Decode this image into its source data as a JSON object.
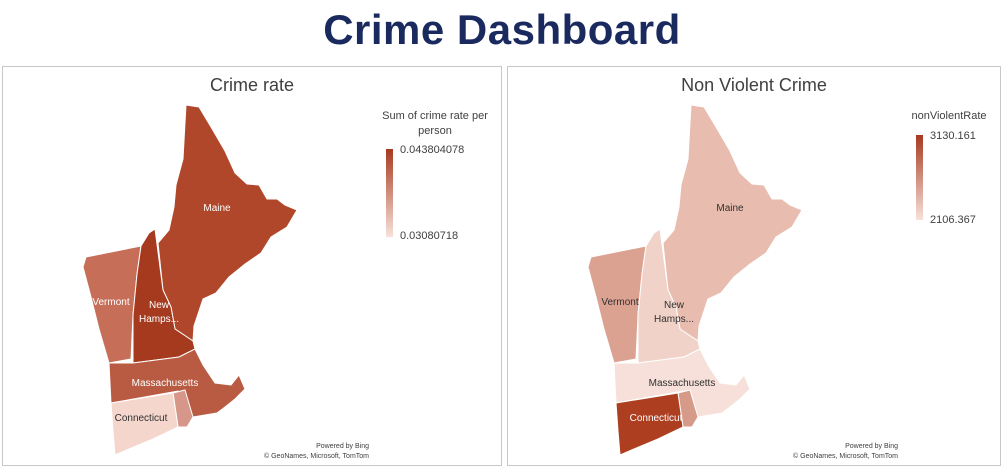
{
  "dashboard": {
    "title": "Crime Dashboard"
  },
  "maps": [
    {
      "title": "Crime rate",
      "legend_title": "Sum of crime rate per person",
      "legend_max": "0.043804078",
      "legend_min": "0.03080718",
      "colors": {
        "maine": "#b0472a",
        "vermont": "#c66e58",
        "new_hampshire": "#a63a1f",
        "massachusetts": "#b95b43",
        "connecticut": "#f4d6cd",
        "rhode_island": "#d6978a"
      },
      "legend_colors": {
        "high": "#a63a1f",
        "low": "#f8e1da"
      }
    },
    {
      "title": "Non Violent Crime",
      "legend_title": "nonViolentRate",
      "legend_max": "3130.161",
      "legend_min": "2106.367",
      "colors": {
        "maine": "#e8bcae",
        "vermont": "#dca291",
        "new_hampshire": "#f1d2c8",
        "massachusetts": "#f6e0d9",
        "connecticut": "#ad3f20",
        "rhode_island": "#d69b88"
      },
      "legend_colors": {
        "high": "#a63a1f",
        "low": "#f8e1da"
      }
    }
  ],
  "state_labels": {
    "maine": "Maine",
    "vermont": "Vermont",
    "new_hampshire_line1": "New",
    "new_hampshire_line2": "Hamps...",
    "massachusetts": "Massachusetts",
    "connecticut": "Connecticut"
  },
  "credit": {
    "line1": "Powered by Bing",
    "line2": "© GeoNames, Microsoft, TomTom"
  }
}
